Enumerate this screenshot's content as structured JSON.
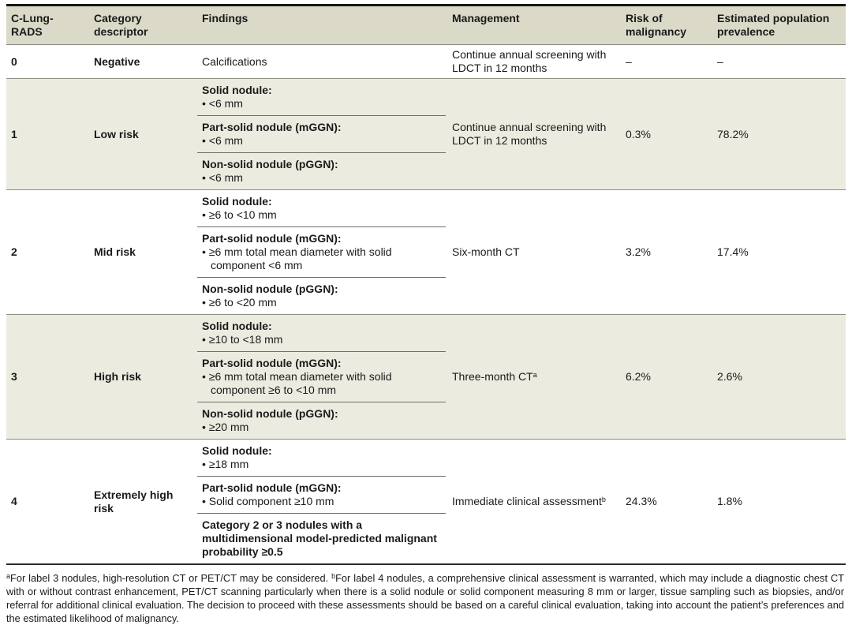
{
  "colors": {
    "header_bg": "#dbd9c7",
    "shaded_row_bg": "#ecebe0",
    "white_row_bg": "#ffffff",
    "text": "#1a1a1a",
    "strong_border": "#161616",
    "row_divider": "#8d8d82",
    "sub_divider": "#6e6e66"
  },
  "table": {
    "columns": [
      "C-Lung-RADS",
      "Category descriptor",
      "Findings",
      "Management",
      "Risk of malignancy",
      "Estimated population prevalence"
    ],
    "rows": [
      {
        "grade": "0",
        "descriptor": "Negative",
        "findings": [
          {
            "title": "",
            "bullets": [],
            "plain": "Calcifications"
          }
        ],
        "management": "Continue annual screening with LDCT in 12 months",
        "management_sup": "",
        "risk_of_malignancy": "–",
        "population_prevalence": "–",
        "shaded": false
      },
      {
        "grade": "1",
        "descriptor": "Low risk",
        "findings": [
          {
            "title": "Solid nodule:",
            "bullets": [
              "<6 mm"
            ]
          },
          {
            "title": "Part-solid nodule (mGGN):",
            "bullets": [
              "<6 mm"
            ]
          },
          {
            "title": "Non-solid nodule (pGGN):",
            "bullets": [
              "<6 mm"
            ]
          }
        ],
        "management": "Continue annual screening with LDCT in 12 months",
        "management_sup": "",
        "risk_of_malignancy": "0.3%",
        "population_prevalence": "78.2%",
        "shaded": true
      },
      {
        "grade": "2",
        "descriptor": "Mid risk",
        "findings": [
          {
            "title": "Solid nodule:",
            "bullets": [
              "≥6 to <10 mm"
            ]
          },
          {
            "title": "Part-solid nodule (mGGN):",
            "bullets": [
              "≥6 mm total mean diameter with solid component <6 mm"
            ]
          },
          {
            "title": "Non-solid nodule (pGGN):",
            "bullets": [
              "≥6 to <20 mm"
            ]
          }
        ],
        "management": "Six-month CT",
        "management_sup": "",
        "risk_of_malignancy": "3.2%",
        "population_prevalence": "17.4%",
        "shaded": false
      },
      {
        "grade": "3",
        "descriptor": "High risk",
        "findings": [
          {
            "title": "Solid nodule:",
            "bullets": [
              "≥10 to <18 mm"
            ]
          },
          {
            "title": "Part-solid nodule (mGGN):",
            "bullets": [
              "≥6 mm total mean diameter with solid component ≥6 to <10 mm"
            ]
          },
          {
            "title": "Non-solid nodule (pGGN):",
            "bullets": [
              "≥20 mm"
            ]
          }
        ],
        "management": "Three-month CT",
        "management_sup": "a",
        "risk_of_malignancy": "6.2%",
        "population_prevalence": "2.6%",
        "shaded": true
      },
      {
        "grade": "4",
        "descriptor": "Extremely high risk",
        "findings": [
          {
            "title": "Solid nodule:",
            "bullets": [
              "≥18 mm"
            ]
          },
          {
            "title": "Part-solid nodule (mGGN):",
            "bullets": [
              "Solid component ≥10 mm"
            ]
          },
          {
            "title": "Category 2 or 3 nodules with a multidimensional model-predicted malignant probability ≥0.5",
            "bullets": []
          }
        ],
        "management": "Immediate clinical assessment",
        "management_sup": "b",
        "risk_of_malignancy": "24.3%",
        "population_prevalence": "1.8%",
        "shaded": false
      }
    ]
  },
  "footnotes": [
    {
      "sup": "a",
      "text": "For label 3 nodules, high-resolution CT or PET/CT may be considered. "
    },
    {
      "sup": "b",
      "text": "For label 4 nodules, a comprehensive clinical assessment is warranted, which may include a diagnostic chest CT with or without contrast enhancement, PET/CT scanning particularly when there is a solid nodule or solid component measuring 8 mm or larger, tissue sampling such as biopsies, and/or referral for additional clinical evaluation. The decision to proceed with these assessments should be based on a careful clinical evaluation, taking into account the patient’s preferences and the estimated likelihood of malignancy."
    }
  ]
}
